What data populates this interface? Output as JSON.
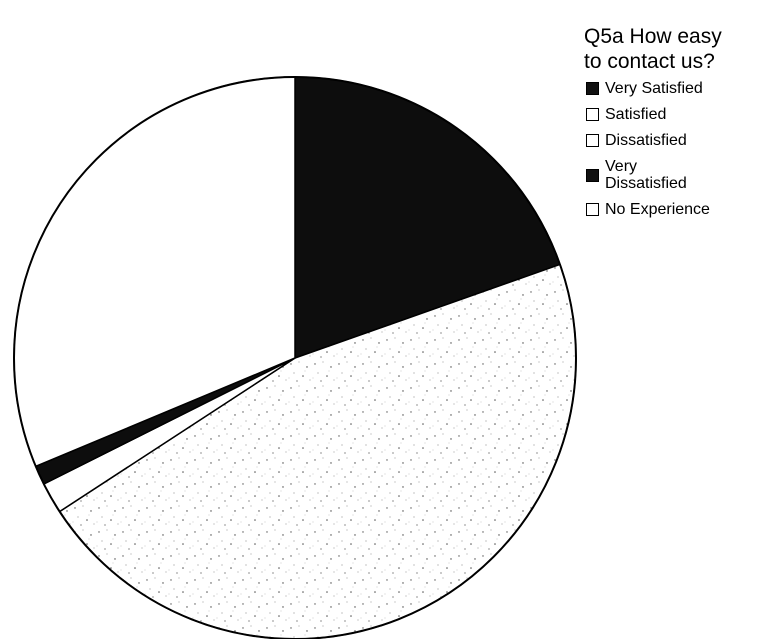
{
  "chart_data": {
    "type": "pie",
    "legend": {
      "title_line1": "Q5a How easy",
      "title_line2": "to contact us?",
      "placement": "right"
    },
    "series": [
      {
        "name": "Very Satisfied",
        "value": 19.6,
        "fill": "#0d0d0d",
        "swatch": "dark"
      },
      {
        "name": "Satisfied",
        "value": 46.2,
        "fill": "speckle",
        "swatch": "speckle"
      },
      {
        "name": "Dissatisfied",
        "value": 1.8,
        "fill": "#ffffff",
        "swatch": "white"
      },
      {
        "name": "Very Dissatisfied",
        "value": 1.1,
        "fill": "#0d0d0d",
        "swatch": "dark"
      },
      {
        "name": "No Experience",
        "value": 31.3,
        "fill": "#ffffff",
        "swatch": "white"
      }
    ],
    "start_angle_deg": 0,
    "direction": "clockwise"
  }
}
